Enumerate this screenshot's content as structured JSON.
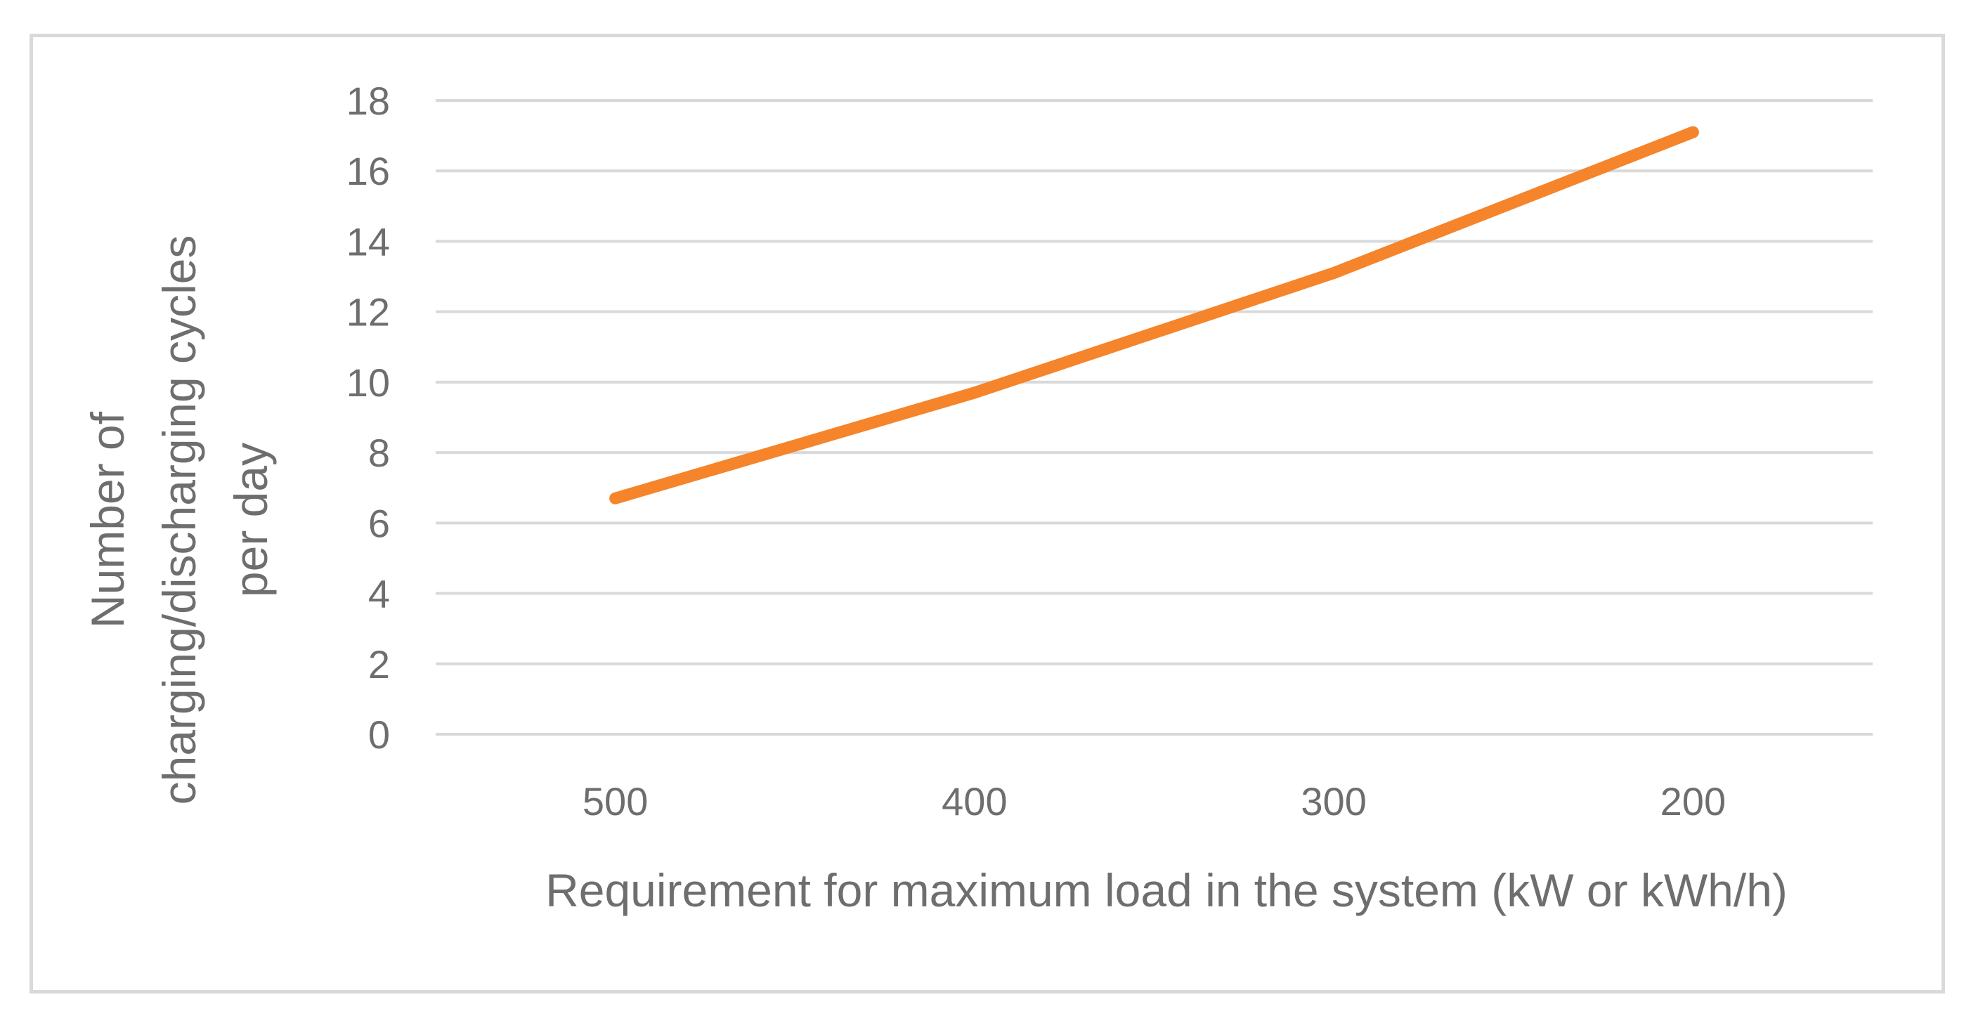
{
  "chart_data": {
    "type": "line",
    "categories": [
      "500",
      "400",
      "300",
      "200"
    ],
    "series": [
      {
        "values": [
          6.7,
          9.7,
          13.1,
          17.1
        ]
      }
    ],
    "xlabel": "Requirement for maximum load in the system (kW or kWh/h)",
    "ylabel_lines": [
      "Number of",
      "charging/discharging cycles",
      "per day"
    ],
    "ylim": [
      0,
      18
    ],
    "y_ticks": [
      "0",
      "2",
      "4",
      "6",
      "8",
      "10",
      "12",
      "14",
      "16",
      "18"
    ],
    "grid": true,
    "legend": "none",
    "colors": {
      "line": "#f5842a",
      "grid": "#d9d9d9",
      "text": "#6e6e6e"
    }
  }
}
